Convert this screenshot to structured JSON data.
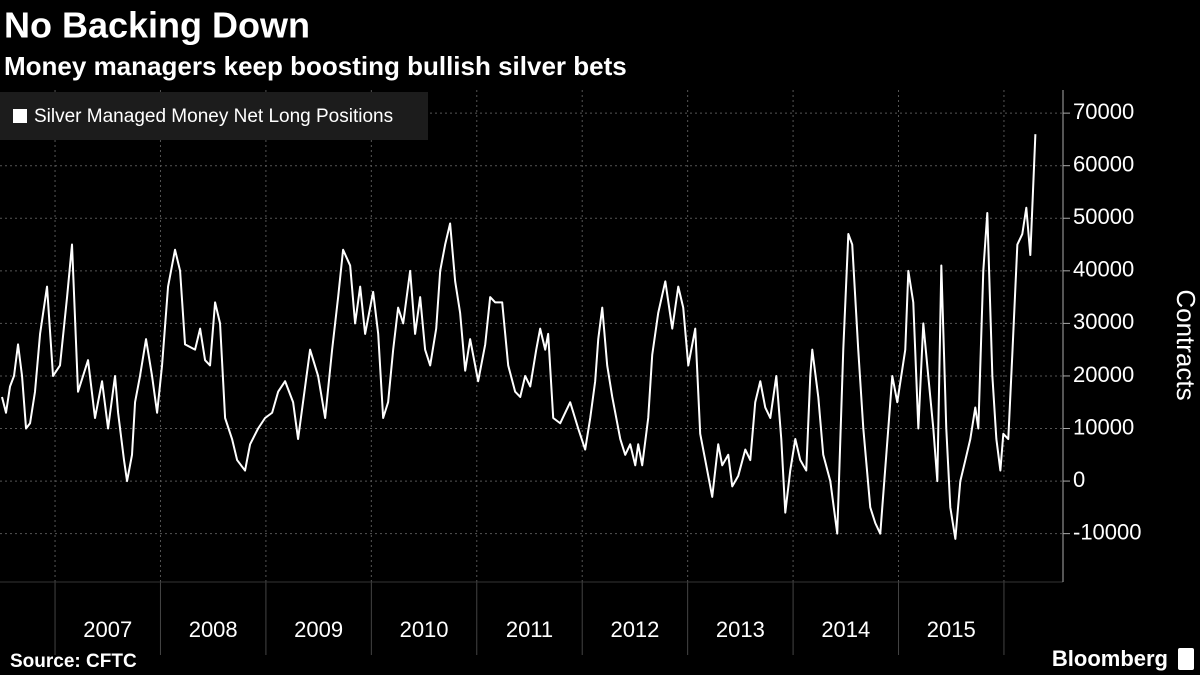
{
  "chart_data": {
    "type": "line",
    "title": "No Backing Down",
    "subtitle": "Money managers keep boosting bullish silver bets",
    "y_label": "Contracts",
    "source": "Source: CFTC",
    "brand": "Bloomberg",
    "legend": "top-left",
    "grid": true,
    "x": [
      2006.497,
      2006.535,
      2006.573,
      2006.611,
      2006.649,
      2006.687,
      2006.725,
      2006.763,
      2006.81,
      2006.858,
      2006.924,
      2006.981,
      2007.047,
      2007.114,
      2007.161,
      2007.218,
      2007.313,
      2007.379,
      2007.446,
      2007.503,
      2007.569,
      2007.598,
      2007.654,
      2007.683,
      2007.73,
      2007.759,
      2007.806,
      2007.863,
      2007.92,
      2007.968,
      2008.015,
      2008.072,
      2008.138,
      2008.186,
      2008.233,
      2008.328,
      2008.376,
      2008.423,
      2008.47,
      2008.518,
      2008.565,
      2008.613,
      2008.679,
      2008.727,
      2008.802,
      2008.85,
      2008.926,
      2008.992,
      2009.059,
      2009.116,
      2009.182,
      2009.258,
      2009.305,
      2009.372,
      2009.419,
      2009.495,
      2009.562,
      2009.628,
      2009.685,
      2009.732,
      2009.799,
      2009.846,
      2009.894,
      2009.941,
      2010.017,
      2010.065,
      2010.112,
      2010.159,
      2010.207,
      2010.254,
      2010.302,
      2010.368,
      2010.415,
      2010.463,
      2010.51,
      2010.558,
      2010.615,
      2010.653,
      2010.7,
      2010.747,
      2010.795,
      2010.842,
      2010.89,
      2010.937,
      2011.013,
      2011.08,
      2011.127,
      2011.174,
      2011.241,
      2011.298,
      2011.364,
      2011.412,
      2011.459,
      2011.507,
      2011.564,
      2011.601,
      2011.649,
      2011.677,
      2011.725,
      2011.791,
      2011.886,
      2011.962,
      2012.028,
      2012.076,
      2012.123,
      2012.152,
      2012.19,
      2012.237,
      2012.285,
      2012.361,
      2012.408,
      2012.455,
      2012.503,
      2012.531,
      2012.569,
      2012.626,
      2012.664,
      2012.721,
      2012.788,
      2012.854,
      2012.911,
      2012.958,
      2013.006,
      2013.072,
      2013.119,
      2013.167,
      2013.233,
      2013.29,
      2013.328,
      2013.385,
      2013.423,
      2013.48,
      2013.547,
      2013.594,
      2013.641,
      2013.689,
      2013.736,
      2013.784,
      2013.841,
      2013.888,
      2013.926,
      2013.973,
      2014.021,
      2014.068,
      2014.125,
      2014.163,
      2014.182,
      2014.239,
      2014.286,
      2014.353,
      2014.419,
      2014.476,
      2014.524,
      2014.561,
      2014.618,
      2014.666,
      2014.732,
      2014.78,
      2014.827,
      2014.884,
      2014.941,
      2014.988,
      2015.064,
      2015.093,
      2015.14,
      2015.188,
      2015.235,
      2015.282,
      2015.33,
      2015.368,
      2015.406,
      2015.453,
      2015.491,
      2015.539,
      2015.586,
      2015.634,
      2015.681,
      2015.728,
      2015.757,
      2015.804,
      2015.842,
      2015.89,
      2015.928,
      2015.966,
      2015.994,
      2016.041,
      2016.079,
      2016.127,
      2016.174,
      2016.212,
      2016.25,
      2016.298
    ],
    "series": [
      {
        "name": "Silver Managed Money Net Long Positions",
        "color": "#ffffff",
        "values": [
          16000,
          13000,
          18000,
          20000,
          26000,
          20000,
          10000,
          11000,
          17000,
          28000,
          37000,
          20000,
          22000,
          35000,
          45000,
          17000,
          23000,
          12000,
          19000,
          10000,
          20000,
          13000,
          4000,
          0,
          5000,
          15000,
          20000,
          27000,
          20000,
          13000,
          22000,
          37000,
          44000,
          40000,
          26000,
          25000,
          29000,
          23000,
          22000,
          34000,
          30000,
          12000,
          8000,
          4000,
          2000,
          7000,
          10000,
          12000,
          13000,
          17000,
          19000,
          15000,
          8000,
          18000,
          25000,
          20000,
          12000,
          25000,
          35000,
          44000,
          41000,
          30000,
          37000,
          28000,
          36000,
          28000,
          12000,
          15000,
          25000,
          33000,
          30000,
          40000,
          28000,
          35000,
          25000,
          22000,
          29000,
          40000,
          45000,
          49000,
          38000,
          32000,
          21000,
          27000,
          19000,
          26000,
          35000,
          34000,
          34000,
          22000,
          17000,
          16000,
          20000,
          18000,
          25000,
          29000,
          25000,
          28000,
          12000,
          11000,
          15000,
          10000,
          6000,
          12000,
          19000,
          27000,
          33000,
          22000,
          16000,
          8000,
          5000,
          7000,
          3000,
          7000,
          3000,
          12000,
          24000,
          32000,
          38000,
          29000,
          37000,
          33000,
          22000,
          29000,
          9000,
          4000,
          -3000,
          7000,
          3000,
          5000,
          -1000,
          1000,
          6000,
          4000,
          15000,
          19000,
          14000,
          12000,
          20000,
          8000,
          -6000,
          2000,
          8000,
          4000,
          2000,
          20000,
          25000,
          16000,
          5000,
          0,
          -10000,
          25000,
          47000,
          45000,
          25000,
          10000,
          -5000,
          -8000,
          -10000,
          5000,
          20000,
          15000,
          25000,
          40000,
          34000,
          10000,
          30000,
          20000,
          10000,
          0,
          41000,
          10000,
          -5000,
          -11000,
          0,
          4000,
          8000,
          14000,
          10000,
          40000,
          51000,
          20000,
          8000,
          2000,
          9000,
          8000,
          24000,
          45000,
          47000,
          52000,
          43000,
          66000
        ]
      }
    ],
    "xlim": [
      2006.478,
      2016.56
    ],
    "xgrid": [
      2007,
      2008,
      2009,
      2010,
      2011,
      2012,
      2013,
      2014,
      2015,
      2016
    ],
    "xticks": [
      {
        "value": 2007.5,
        "label": "2007"
      },
      {
        "value": 2008.5,
        "label": "2008"
      },
      {
        "value": 2009.5,
        "label": "2009"
      },
      {
        "value": 2010.5,
        "label": "2010"
      },
      {
        "value": 2011.5,
        "label": "2011"
      },
      {
        "value": 2012.5,
        "label": "2012"
      },
      {
        "value": 2013.5,
        "label": "2013"
      },
      {
        "value": 2014.5,
        "label": "2014"
      },
      {
        "value": 2015.5,
        "label": "2015"
      }
    ],
    "ylim": [
      -19200,
      74400
    ],
    "yticks": [
      -10000,
      0,
      10000,
      20000,
      30000,
      40000,
      50000,
      60000,
      70000
    ]
  }
}
